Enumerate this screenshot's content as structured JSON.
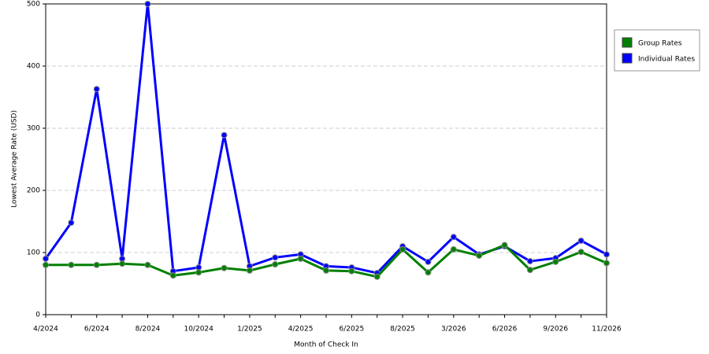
{
  "chart_data": {
    "type": "line",
    "x_label": "Month of Check In",
    "y_label": "Lowest Average Rate (USD)",
    "categories": [
      "4/2024",
      null,
      "6/2024",
      null,
      "8/2024",
      null,
      "10/2024",
      null,
      "1/2025",
      null,
      "4/2025",
      null,
      "6/2025",
      null,
      "8/2025",
      null,
      "3/2026",
      null,
      "6/2026",
      null,
      "9/2026",
      null,
      "11/2026"
    ],
    "series": [
      {
        "name": "Group Rates",
        "color": "#008000",
        "values": [
          80,
          80,
          80,
          82,
          80,
          63,
          68,
          75,
          71,
          81,
          90,
          71,
          70,
          61,
          105,
          68,
          105,
          95,
          112,
          72,
          85,
          101,
          83
        ]
      },
      {
        "name": "Individual Rates",
        "color": "#0000ff",
        "values": [
          90,
          148,
          363,
          90,
          500,
          70,
          76,
          289,
          78,
          92,
          97,
          78,
          76,
          67,
          110,
          85,
          125,
          97,
          110,
          86,
          91,
          119,
          97
        ]
      }
    ],
    "ylim": [
      0,
      500
    ],
    "yticks": [
      0,
      100,
      200,
      300,
      400,
      500
    ],
    "grid": true,
    "legend": "right"
  }
}
